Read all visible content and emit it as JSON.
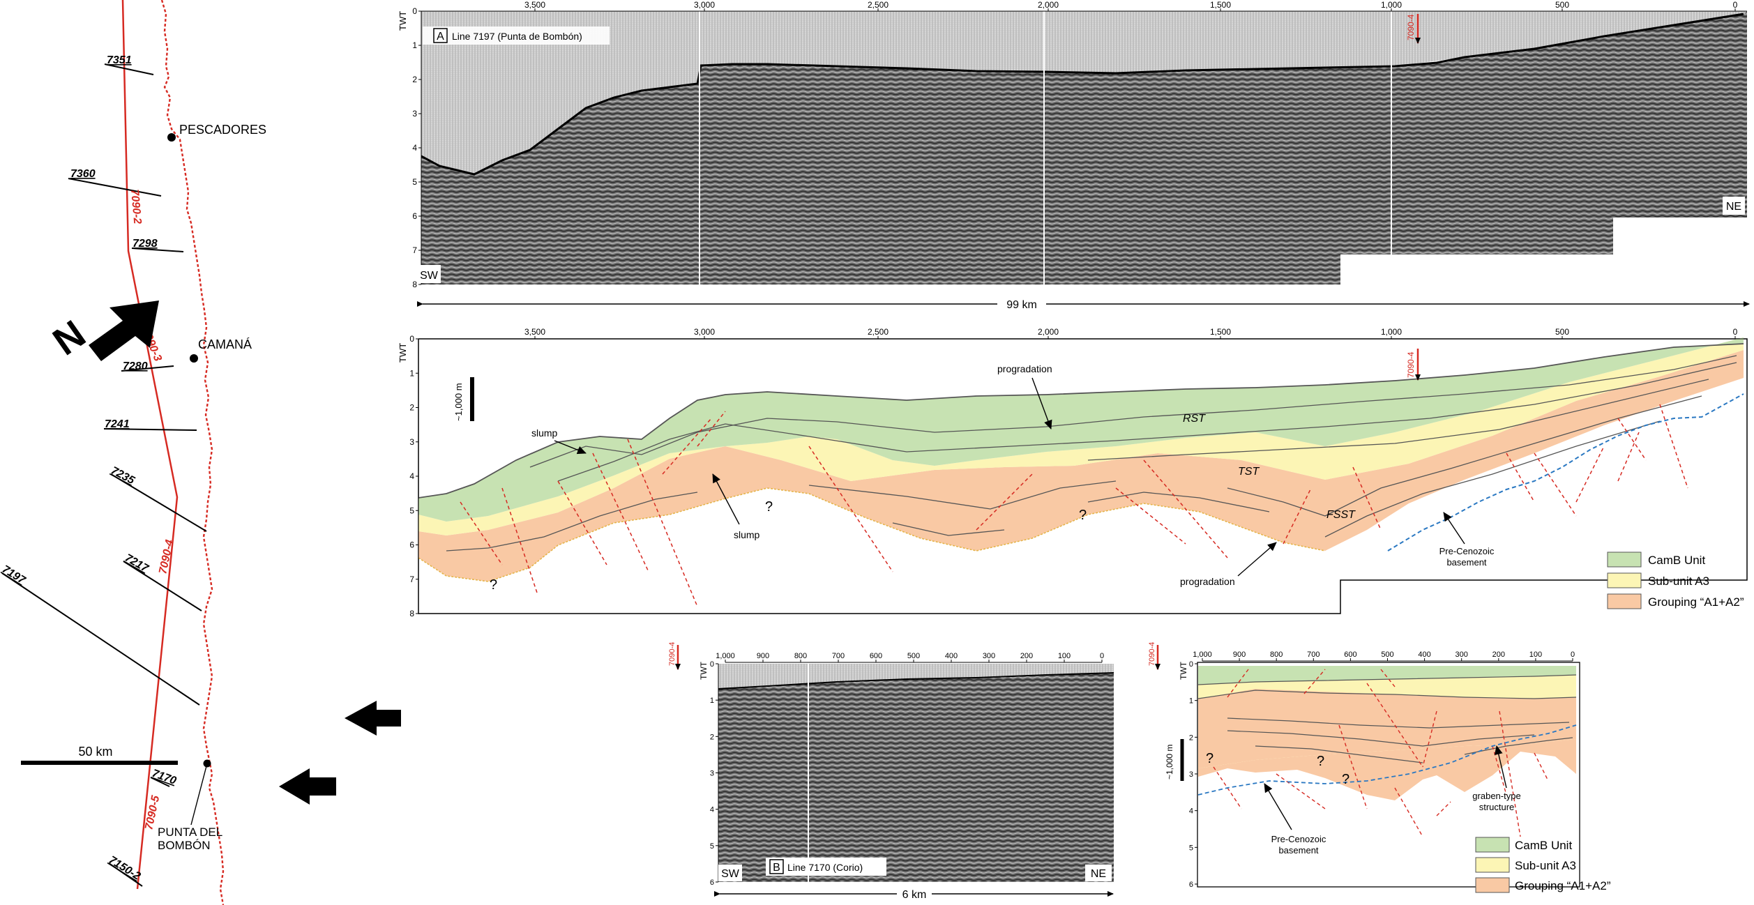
{
  "map": {
    "lines": [
      "7351",
      "7360",
      "7298",
      "7280",
      "7241",
      "7235",
      "7217",
      "7197",
      "7170",
      "7150-2"
    ],
    "segments": [
      "7090-2",
      "7090-3",
      "7090-4",
      "7090-5"
    ],
    "towns": [
      "PESCADORES",
      "CAMANÁ"
    ],
    "punta": [
      "PUNTA DEL",
      "BOMBÓN"
    ],
    "north": "N",
    "scale": "50 km"
  },
  "panelA": {
    "letter": "A",
    "title": "Line 7197 (Punta de Bombón)",
    "axis_label": "TWT",
    "sw": "SW",
    "ne": "NE",
    "distance": "99 km",
    "tie": "7090-4",
    "cdp_ticks": [
      "3,500",
      "3,000",
      "2,500",
      "2,000",
      "1,500",
      "1,000",
      "500",
      "0"
    ],
    "twt_ticks": [
      "0",
      "1",
      "2",
      "3",
      "4",
      "5",
      "6",
      "7",
      "8"
    ]
  },
  "panelA_interp": {
    "axis_label": "TWT",
    "tie": "7090-4",
    "scale": "~1,000 m",
    "labels": {
      "slump1": "slump",
      "slump2": "slump",
      "prog1": "progradation",
      "prog2": "progradation",
      "rst": "RST",
      "tst": "TST",
      "fsst": "FSST",
      "q1": "?",
      "q2": "?",
      "q3": "?",
      "basement1": "Pre-Cenozoic",
      "basement2": "basement"
    }
  },
  "panelB": {
    "letter": "B",
    "title": "Line 7170 (Corio)",
    "axis_label": "TWT",
    "sw": "SW",
    "ne": "NE",
    "distance": "6 km",
    "tie": "7090-4",
    "cdp_ticks": [
      "1,000",
      "900",
      "800",
      "700",
      "600",
      "500",
      "400",
      "300",
      "200",
      "100",
      "0"
    ],
    "twt_ticks": [
      "0",
      "1",
      "2",
      "3",
      "4",
      "5",
      "6"
    ]
  },
  "panelB_interp": {
    "axis_label": "TWT",
    "tie": "7090-4",
    "scale": "~1,000 m",
    "labels": {
      "q1": "?",
      "q2": "?",
      "q3": "?",
      "basement1": "Pre-Cenozoic",
      "basement2": "basement",
      "graben1": "graben-type",
      "graben2": "structure"
    }
  },
  "legend": {
    "items": [
      {
        "label": "CamB Unit",
        "color": "#c7e2b2"
      },
      {
        "label": "Sub-unit A3",
        "color": "#fcf5b5"
      },
      {
        "label": "Grouping “A1+A2”",
        "color": "#f9c9a4"
      }
    ]
  },
  "colors": {
    "red": "#d62a22",
    "blue": "#2a78c2"
  }
}
